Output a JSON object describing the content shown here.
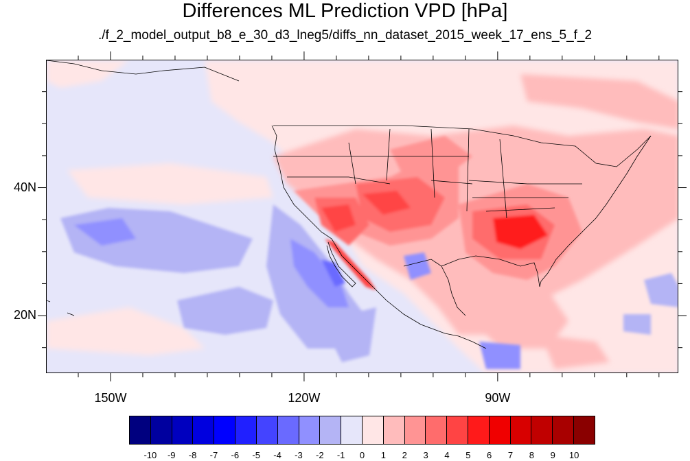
{
  "title": "Differences ML Prediction VPD [hPa]",
  "subtitle": "./f_2_model_output_b8_e_30_d3_lneg5/diffs_nn_dataset_2015_week_17_ens_5_f_2",
  "map": {
    "lon_range": [
      -160,
      -62
    ],
    "lat_range": [
      11,
      60
    ],
    "lon_labels": [
      {
        "lon": -150,
        "text": "150W"
      },
      {
        "lon": -120,
        "text": "120W"
      },
      {
        "lon": -90,
        "text": "90W"
      }
    ],
    "lat_labels": [
      {
        "lat": 40,
        "text": "40N"
      },
      {
        "lat": 20,
        "text": "20N"
      }
    ],
    "minor_lon_ticks": [
      -155,
      -150,
      -145,
      -140,
      -135,
      -130,
      -125,
      -120,
      -115,
      -110,
      -105,
      -100,
      -95,
      -90,
      -85,
      -80,
      -75,
      -70,
      -65
    ],
    "minor_lat_ticks": [
      15,
      20,
      25,
      30,
      35,
      40,
      45,
      50,
      55
    ]
  },
  "colorbar": {
    "colors": [
      "#00007f",
      "#00009f",
      "#0000bf",
      "#0000df",
      "#0000ff",
      "#2020ff",
      "#4444ff",
      "#6a6aff",
      "#9090ff",
      "#b4b4f5",
      "#e6e6fa",
      "#ffe6e6",
      "#ffbcbc",
      "#ff9494",
      "#ff6c6c",
      "#ff4444",
      "#ff1a1a",
      "#f00000",
      "#d80000",
      "#c00000",
      "#a80000",
      "#8a0000"
    ],
    "labels": [
      "-10",
      "-9",
      "-8",
      "-7",
      "-6",
      "-5",
      "-4",
      "-3",
      "-2",
      "-1",
      "0",
      "1",
      "2",
      "3",
      "4",
      "5",
      "6",
      "7",
      "8",
      "9",
      "10"
    ]
  }
}
